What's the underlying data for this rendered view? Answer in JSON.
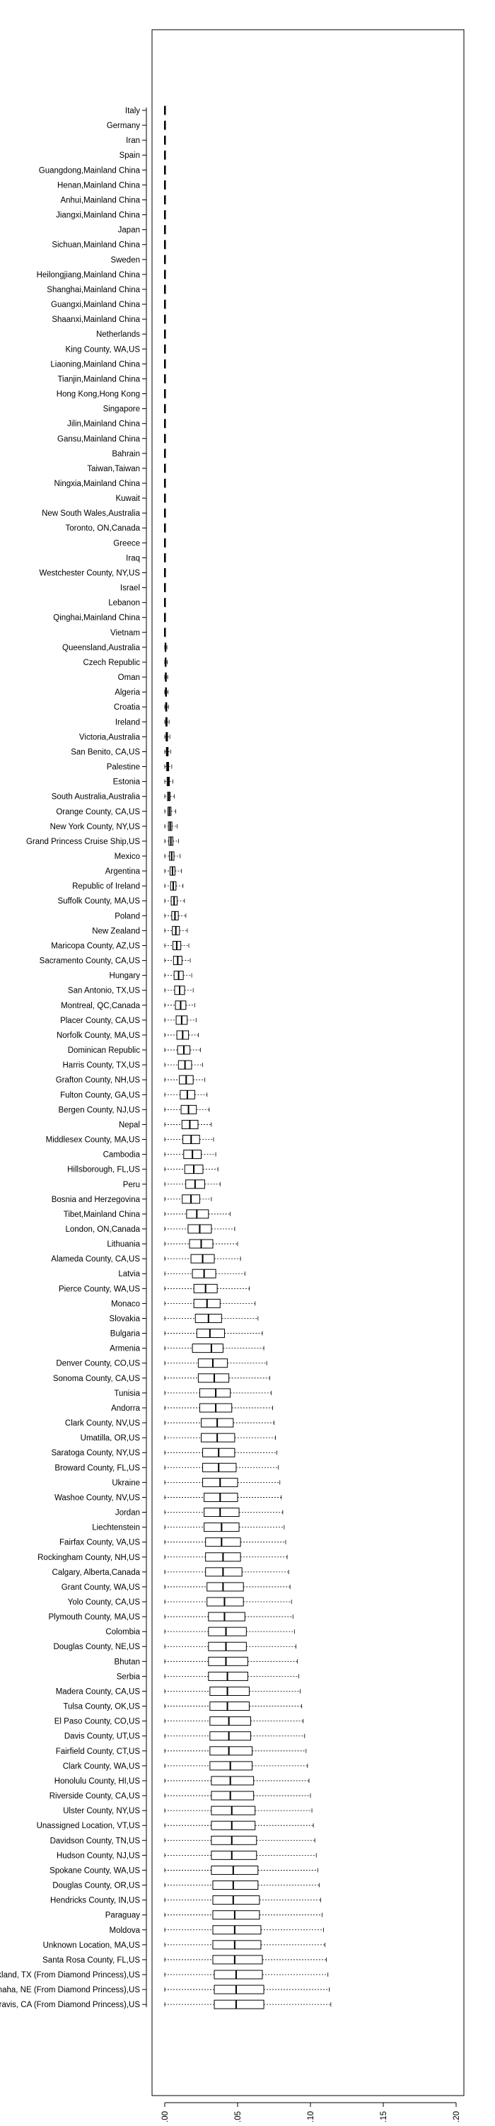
{
  "chart_data": {
    "type": "boxplot",
    "orientation": "horizontal",
    "title": "",
    "xlabel": "",
    "ylabel": "",
    "xlim": [
      -0.005,
      0.205
    ],
    "x_ticks": [
      0.0,
      0.05,
      0.1,
      0.15,
      0.2
    ],
    "x_tick_labels": [
      "0.00",
      "0.05",
      "0.10",
      "0.15",
      "0.20"
    ],
    "grid": false,
    "legend": "none",
    "colors": {
      "box_fill": "#ffffff",
      "stroke": "#000000",
      "outlier": "#000000"
    },
    "categories": [
      "Italy",
      "Germany",
      "Iran",
      "Spain",
      "Guangdong,Mainland China",
      "Henan,Mainland China",
      "Anhui,Mainland China",
      "Jiangxi,Mainland China",
      "Japan",
      "Sichuan,Mainland China",
      "Sweden",
      "Heilongjiang,Mainland China",
      "Shanghai,Mainland China",
      "Guangxi,Mainland China",
      "Shaanxi,Mainland China",
      "Netherlands",
      "King County, WA,US",
      "Liaoning,Mainland China",
      "Tianjin,Mainland China",
      "Hong Kong,Hong Kong",
      "Singapore",
      "Jilin,Mainland China",
      "Gansu,Mainland China",
      "Bahrain",
      "Taiwan,Taiwan",
      "Ningxia,Mainland China",
      "Kuwait",
      "New South Wales,Australia",
      "Toronto, ON,Canada",
      "Greece",
      "Iraq",
      "Westchester County, NY,US",
      "Israel",
      "Lebanon",
      "Qinghai,Mainland China",
      "Vietnam",
      "Queensland,Australia",
      "Czech Republic",
      "Oman",
      "Algeria",
      "Croatia",
      "Ireland",
      "Victoria,Australia",
      "San Benito, CA,US",
      "Palestine",
      "Estonia",
      "South Australia,Australia",
      "Orange County, CA,US",
      "New York County, NY,US",
      "Grand Princess Cruise Ship,US",
      "Mexico",
      "Argentina",
      "Republic of Ireland",
      "Suffolk County, MA,US",
      "Poland",
      "New Zealand",
      "Maricopa County, AZ,US",
      "Sacramento County, CA,US",
      "Hungary",
      "San Antonio, TX,US",
      "Montreal, QC,Canada",
      "Placer County, CA,US",
      "Norfolk County, MA,US",
      "Dominican Republic",
      "Harris County, TX,US",
      "Grafton County, NH,US",
      "Fulton County, GA,US",
      "Bergen County, NJ,US",
      "Nepal",
      "Middlesex County, MA,US",
      "Cambodia",
      "Hillsborough, FL,US",
      "Peru",
      "Bosnia and Herzegovina",
      "Tibet,Mainland China",
      "London, ON,Canada",
      "Lithuania",
      "Alameda County, CA,US",
      "Latvia",
      "Pierce County, WA,US",
      "Monaco",
      "Slovakia",
      "Bulgaria",
      "Armenia",
      "Denver County, CO,US",
      "Sonoma County, CA,US",
      "Tunisia",
      "Andorra",
      "Clark County, NV,US",
      "Umatilla, OR,US",
      "Saratoga County, NY,US",
      "Broward County, FL,US",
      "Ukraine",
      "Washoe County, NV,US",
      "Jordan",
      "Liechtenstein",
      "Fairfax County, VA,US",
      "Rockingham County, NH,US",
      "Calgary, Alberta,Canada",
      "Grant County, WA,US",
      "Yolo County, CA,US",
      "Plymouth County, MA,US",
      "Colombia",
      "Douglas County, NE,US",
      "Bhutan",
      "Serbia",
      "Madera County, CA,US",
      "Tulsa County, OK,US",
      "El Paso County, CO,US",
      "Davis County, UT,US",
      "Fairfield County, CT,US",
      "Clark County, WA,US",
      "Honolulu County, HI,US",
      "Riverside County, CA,US",
      "Ulster County, NY,US",
      "Unassigned Location, VT,US",
      "Davidson County, TN,US",
      "Hudson County, NJ,US",
      "Spokane County, WA,US",
      "Douglas County, OR,US",
      "Hendricks County, IN,US",
      "Paraguay",
      "Moldova",
      "Unknown Location, MA,US",
      "Santa Rosa County, FL,US",
      "Lackland, TX (From Diamond Princess),US",
      "Omaha, NE (From Diamond Princess),US",
      "Travis, CA (From Diamond Princess),US"
    ],
    "box_stats": [
      [
        0,
        0,
        0,
        0.0001,
        0.0003
      ],
      [
        0,
        0,
        0,
        0.0001,
        0.0003
      ],
      [
        0,
        0,
        0,
        0.0001,
        0.0003
      ],
      [
        0,
        0,
        0,
        0.0001,
        0.0003
      ],
      [
        0,
        0,
        0,
        0.0001,
        0.0003
      ],
      [
        0,
        0,
        0,
        0.0001,
        0.0003
      ],
      [
        0,
        0,
        0,
        0.0001,
        0.0003
      ],
      [
        0,
        0,
        0,
        0.0001,
        0.0003
      ],
      [
        0,
        0,
        0,
        0.0001,
        0.0003
      ],
      [
        0,
        0,
        0,
        0.0001,
        0.0003
      ],
      [
        0,
        0,
        0,
        0.0001,
        0.0003
      ],
      [
        0,
        0,
        0,
        0.0001,
        0.0003
      ],
      [
        0,
        0,
        0,
        0.0001,
        0.0003
      ],
      [
        0,
        0,
        0,
        0.0001,
        0.0003
      ],
      [
        0,
        0,
        0,
        0.0001,
        0.0003
      ],
      [
        0,
        0,
        0,
        0.0001,
        0.0003
      ],
      [
        0,
        0,
        0,
        0.0001,
        0.0003
      ],
      [
        0,
        0,
        0,
        0.0001,
        0.0003
      ],
      [
        0,
        0,
        0,
        0.0001,
        0.0003
      ],
      [
        0,
        0,
        0,
        0.0001,
        0.0003
      ],
      [
        0,
        0,
        0,
        0.0001,
        0.0003
      ],
      [
        0,
        0,
        0,
        0.0001,
        0.0003
      ],
      [
        0,
        0,
        0,
        0.0001,
        0.0003
      ],
      [
        0,
        0,
        0,
        0.0001,
        0.0003
      ],
      [
        0,
        0,
        0,
        0.0001,
        0.0003
      ],
      [
        0,
        0,
        0,
        0.0001,
        0.0003
      ],
      [
        0,
        0,
        0,
        0.0001,
        0.0003
      ],
      [
        0,
        0,
        0,
        0.0001,
        0.0003
      ],
      [
        0,
        0,
        0,
        0.0001,
        0.0003
      ],
      [
        0,
        0,
        0,
        0.0001,
        0.0003
      ],
      [
        0,
        0,
        0,
        0.0001,
        0.0003
      ],
      [
        0,
        0,
        0,
        0.0001,
        0.0003
      ],
      [
        0,
        0,
        0,
        0.0001,
        0.0003
      ],
      [
        0,
        0,
        0,
        0.0001,
        0.0003
      ],
      [
        0,
        0,
        0,
        0.0001,
        0.0003
      ],
      [
        0,
        0,
        0,
        0.0001,
        0.0003
      ],
      [
        0,
        0.0002,
        0.0005,
        0.0008,
        0.0015
      ],
      [
        0,
        0.0003,
        0.0006,
        0.0009,
        0.0018
      ],
      [
        0,
        0.0004,
        0.0007,
        0.0011,
        0.002
      ],
      [
        0,
        0.0005,
        0.0008,
        0.0012,
        0.0022
      ],
      [
        0,
        0.0006,
        0.001,
        0.0014,
        0.0025
      ],
      [
        0,
        0.0007,
        0.0012,
        0.0016,
        0.003
      ],
      [
        0,
        0.0009,
        0.0014,
        0.0019,
        0.0035
      ],
      [
        0,
        0.0011,
        0.0017,
        0.0023,
        0.004
      ],
      [
        0,
        0.0013,
        0.002,
        0.0027,
        0.0048
      ],
      [
        0,
        0.0016,
        0.0024,
        0.0032,
        0.0055
      ],
      [
        0,
        0.0019,
        0.0028,
        0.0037,
        0.0065
      ],
      [
        0,
        0.0022,
        0.0032,
        0.0043,
        0.0075
      ],
      [
        0,
        0.0025,
        0.0037,
        0.0049,
        0.0085
      ],
      [
        0,
        0.0028,
        0.0042,
        0.0056,
        0.0095
      ],
      [
        0,
        0.0032,
        0.0047,
        0.0063,
        0.0105
      ],
      [
        0,
        0.0036,
        0.0053,
        0.007,
        0.0115
      ],
      [
        0,
        0.004,
        0.0058,
        0.0077,
        0.0125
      ],
      [
        0,
        0.0044,
        0.0064,
        0.0085,
        0.0135
      ],
      [
        0,
        0.0048,
        0.007,
        0.0093,
        0.0145
      ],
      [
        0,
        0.0052,
        0.0076,
        0.0101,
        0.0155
      ],
      [
        0,
        0.0056,
        0.0082,
        0.011,
        0.0165
      ],
      [
        0,
        0.006,
        0.0089,
        0.0118,
        0.0175
      ],
      [
        0,
        0.0064,
        0.0095,
        0.0127,
        0.0185
      ],
      [
        0,
        0.0068,
        0.0102,
        0.0136,
        0.0195
      ],
      [
        0,
        0.0073,
        0.0109,
        0.0145,
        0.0205
      ],
      [
        0,
        0.0078,
        0.0116,
        0.0154,
        0.0215
      ],
      [
        0,
        0.0083,
        0.0123,
        0.0163,
        0.023
      ],
      [
        0,
        0.0088,
        0.0131,
        0.0173,
        0.0245
      ],
      [
        0,
        0.0094,
        0.0139,
        0.0184,
        0.026
      ],
      [
        0,
        0.01,
        0.0147,
        0.0195,
        0.0275
      ],
      [
        0,
        0.0106,
        0.0155,
        0.0206,
        0.029
      ],
      [
        0,
        0.0112,
        0.0163,
        0.0217,
        0.0305
      ],
      [
        0,
        0.0118,
        0.0172,
        0.0228,
        0.032
      ],
      [
        0,
        0.0124,
        0.0181,
        0.0239,
        0.0335
      ],
      [
        0,
        0.013,
        0.019,
        0.025,
        0.035
      ],
      [
        0,
        0.0137,
        0.0199,
        0.0262,
        0.0365
      ],
      [
        0,
        0.0144,
        0.0208,
        0.0274,
        0.038
      ],
      [
        0,
        0.012,
        0.018,
        0.024,
        0.032
      ],
      [
        0,
        0.015,
        0.022,
        0.03,
        0.045
      ],
      [
        0,
        0.016,
        0.024,
        0.032,
        0.048
      ],
      [
        0,
        0.017,
        0.025,
        0.033,
        0.05
      ],
      [
        0,
        0.018,
        0.026,
        0.034,
        0.052
      ],
      [
        0,
        0.019,
        0.027,
        0.035,
        0.055
      ],
      [
        0,
        0.02,
        0.028,
        0.036,
        0.058
      ],
      [
        0,
        0.02,
        0.029,
        0.038,
        0.062
      ],
      [
        0,
        0.021,
        0.03,
        0.039,
        0.064
      ],
      [
        0,
        0.022,
        0.031,
        0.041,
        0.067
      ],
      [
        0,
        0.019,
        0.032,
        0.04,
        0.068
      ],
      [
        0,
        0.023,
        0.033,
        0.043,
        0.07
      ],
      [
        0,
        0.023,
        0.034,
        0.044,
        0.072
      ],
      [
        0,
        0.024,
        0.035,
        0.045,
        0.073
      ],
      [
        0,
        0.024,
        0.035,
        0.046,
        0.074
      ],
      [
        0,
        0.025,
        0.036,
        0.047,
        0.075
      ],
      [
        0,
        0.025,
        0.036,
        0.048,
        0.076
      ],
      [
        0,
        0.026,
        0.037,
        0.048,
        0.077
      ],
      [
        0,
        0.026,
        0.037,
        0.049,
        0.078
      ],
      [
        0,
        0.026,
        0.038,
        0.05,
        0.079
      ],
      [
        0,
        0.027,
        0.038,
        0.05,
        0.08
      ],
      [
        0,
        0.027,
        0.038,
        0.051,
        0.081
      ],
      [
        0,
        0.027,
        0.039,
        0.051,
        0.082
      ],
      [
        0,
        0.028,
        0.039,
        0.052,
        0.083
      ],
      [
        0,
        0.028,
        0.04,
        0.052,
        0.084
      ],
      [
        0,
        0.028,
        0.04,
        0.053,
        0.085
      ],
      [
        0,
        0.029,
        0.04,
        0.054,
        0.086
      ],
      [
        0,
        0.029,
        0.041,
        0.054,
        0.087
      ],
      [
        0,
        0.03,
        0.041,
        0.055,
        0.088
      ],
      [
        0,
        0.03,
        0.042,
        0.056,
        0.089
      ],
      [
        0,
        0.03,
        0.042,
        0.056,
        0.09
      ],
      [
        0,
        0.03,
        0.042,
        0.057,
        0.091
      ],
      [
        0,
        0.03,
        0.043,
        0.057,
        0.092
      ],
      [
        0,
        0.031,
        0.043,
        0.058,
        0.093
      ],
      [
        0,
        0.031,
        0.043,
        0.058,
        0.094
      ],
      [
        0,
        0.031,
        0.044,
        0.059,
        0.095
      ],
      [
        0,
        0.031,
        0.044,
        0.059,
        0.096
      ],
      [
        0,
        0.031,
        0.044,
        0.06,
        0.097
      ],
      [
        0,
        0.031,
        0.045,
        0.06,
        0.098
      ],
      [
        0,
        0.032,
        0.045,
        0.061,
        0.099
      ],
      [
        0,
        0.032,
        0.045,
        0.061,
        0.1
      ],
      [
        0,
        0.032,
        0.046,
        0.062,
        0.101
      ],
      [
        0,
        0.032,
        0.046,
        0.062,
        0.102
      ],
      [
        0,
        0.032,
        0.046,
        0.063,
        0.103
      ],
      [
        0,
        0.032,
        0.046,
        0.063,
        0.104
      ],
      [
        0,
        0.032,
        0.047,
        0.064,
        0.105
      ],
      [
        0,
        0.033,
        0.047,
        0.064,
        0.106
      ],
      [
        0,
        0.033,
        0.047,
        0.065,
        0.107
      ],
      [
        0,
        0.033,
        0.048,
        0.065,
        0.108
      ],
      [
        0,
        0.033,
        0.048,
        0.066,
        0.109
      ],
      [
        0,
        0.033,
        0.048,
        0.066,
        0.11
      ],
      [
        0,
        0.033,
        0.048,
        0.067,
        0.111
      ],
      [
        0,
        0.034,
        0.049,
        0.067,
        0.112
      ],
      [
        0,
        0.034,
        0.049,
        0.068,
        0.113
      ],
      [
        0,
        0.034,
        0.049,
        0.068,
        0.114
      ],
      [
        0,
        0.034,
        0.05,
        0.069,
        0.115
      ],
      [
        0,
        0.034,
        0.05,
        0.069,
        0.116
      ],
      [
        0,
        0.034,
        0.05,
        0.07,
        0.117
      ],
      [
        0,
        0.035,
        0.051,
        0.07,
        0.118
      ],
      [
        0,
        0.035,
        0.051,
        0.071,
        0.119
      ],
      [
        0.002,
        0.05,
        0.058,
        0.066,
        0.075
      ],
      [
        0.002,
        0.055,
        0.082,
        0.108,
        0.198
      ],
      [
        0.002,
        0.056,
        0.083,
        0.109,
        0.186
      ],
      [
        0.002,
        0.057,
        0.085,
        0.112,
        0.195
      ]
    ]
  }
}
